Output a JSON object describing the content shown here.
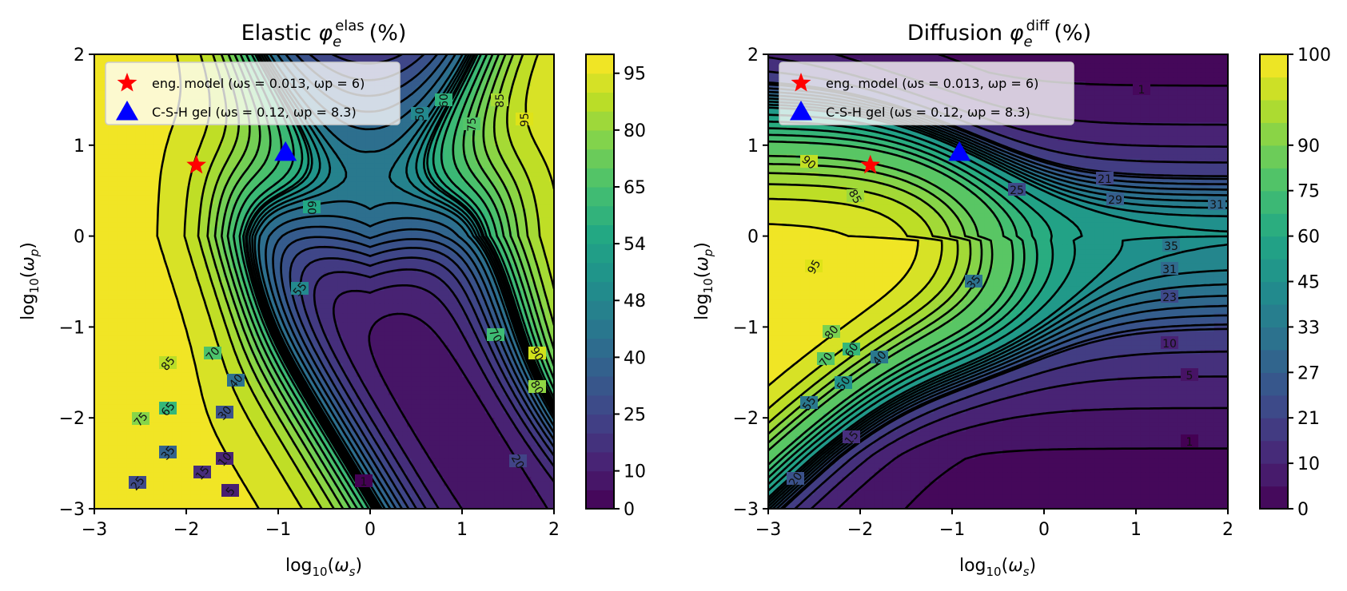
{
  "chart_data": [
    {
      "type": "heatmap",
      "subtype": "filled-contour",
      "title": "Elastic",
      "title_symbol": "φ",
      "title_sub": "e",
      "title_sup": "elas",
      "title_unit": "(%)",
      "xlabel": "log10(ωs)",
      "ylabel": "log10(ωp)",
      "xlim": [
        -3,
        2
      ],
      "ylim": [
        -3,
        2
      ],
      "xticks": [
        "−3",
        "−2",
        "−1",
        "0",
        "1",
        "2"
      ],
      "yticks": [
        "−3",
        "−2",
        "−1",
        "0",
        "1",
        "2"
      ],
      "colormap": "viridis",
      "colorbar_ticks": [
        "0",
        "10",
        "25",
        "40",
        "48",
        "54",
        "65",
        "80",
        "95"
      ],
      "contour_labels": [
        "1",
        "5",
        "10",
        "15",
        "20",
        "25",
        "30",
        "35",
        "40",
        "50",
        "55",
        "60",
        "65",
        "70",
        "75",
        "80",
        "85",
        "90",
        "95"
      ],
      "markers": [
        {
          "label": "eng. model (ωs = 0.013,  ωp = 6)",
          "x": -1.89,
          "y": 0.78,
          "shape": "star",
          "color": "#ff0000"
        },
        {
          "label": "C-S-H gel (ωs = 0.12,  ωp = 8.3)",
          "x": -0.92,
          "y": 0.92,
          "shape": "triangle",
          "color": "#0000ff"
        }
      ],
      "legend_position": "upper-left"
    },
    {
      "type": "heatmap",
      "subtype": "filled-contour",
      "title": "Diffusion",
      "title_symbol": "φ",
      "title_sub": "e",
      "title_sup": "diff",
      "title_unit": "(%)",
      "xlabel": "log10(ωs)",
      "ylabel": "log10(ωp)",
      "xlim": [
        -3,
        2
      ],
      "ylim": [
        -3,
        2
      ],
      "xticks": [
        "−3",
        "−2",
        "−1",
        "0",
        "1",
        "2"
      ],
      "yticks": [
        "−3",
        "−2",
        "−1",
        "0",
        "1",
        "2"
      ],
      "colormap": "viridis",
      "colorbar_ticks": [
        "0",
        "10",
        "21",
        "27",
        "33",
        "45",
        "60",
        "75",
        "90",
        "100"
      ],
      "contour_labels": [
        "1",
        "5",
        "10",
        "15",
        "20",
        "21",
        "23",
        "25",
        "29",
        "31",
        "35",
        "40",
        "50",
        "55",
        "60",
        "70",
        "75",
        "80",
        "85",
        "90",
        "95"
      ],
      "markers": [
        {
          "label": "eng. model (ωs = 0.013,  ωp = 6)",
          "x": -1.89,
          "y": 0.78,
          "shape": "star",
          "color": "#ff0000"
        },
        {
          "label": "C-S-H gel (ωs = 0.12,  ωp = 8.3)",
          "x": -0.92,
          "y": 0.92,
          "shape": "triangle",
          "color": "#0000ff"
        }
      ],
      "legend_position": "upper-left"
    }
  ]
}
